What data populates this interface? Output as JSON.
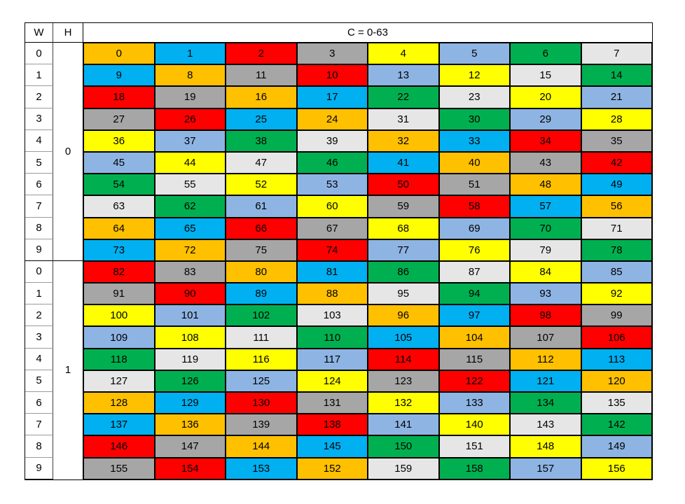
{
  "page": {
    "background": "#FFFFFF"
  },
  "table": {
    "header": {
      "w": "W",
      "h": "H",
      "c": "C = 0-63"
    },
    "palette": {
      "orange": "#FFC000",
      "cyan": "#00B0F0",
      "red": "#FF0000",
      "gray": "#A6A6A6",
      "yellow": "#FFFF00",
      "blue": "#8EB4E3",
      "green": "#00B050",
      "lightgray": "#E7E6E6"
    },
    "sections": [
      {
        "h_label": "0",
        "rows": [
          {
            "w_label": "0",
            "cells": [
              {
                "v": "0",
                "c": "orange"
              },
              {
                "v": "1",
                "c": "cyan"
              },
              {
                "v": "2",
                "c": "red"
              },
              {
                "v": "3",
                "c": "gray"
              },
              {
                "v": "4",
                "c": "yellow"
              },
              {
                "v": "5",
                "c": "blue"
              },
              {
                "v": "6",
                "c": "green"
              },
              {
                "v": "7",
                "c": "lightgray"
              }
            ]
          },
          {
            "w_label": "1",
            "cells": [
              {
                "v": "9",
                "c": "cyan"
              },
              {
                "v": "8",
                "c": "orange"
              },
              {
                "v": "11",
                "c": "gray"
              },
              {
                "v": "10",
                "c": "red"
              },
              {
                "v": "13",
                "c": "blue"
              },
              {
                "v": "12",
                "c": "yellow"
              },
              {
                "v": "15",
                "c": "lightgray"
              },
              {
                "v": "14",
                "c": "green"
              }
            ]
          },
          {
            "w_label": "2",
            "cells": [
              {
                "v": "18",
                "c": "red"
              },
              {
                "v": "19",
                "c": "gray"
              },
              {
                "v": "16",
                "c": "orange"
              },
              {
                "v": "17",
                "c": "cyan"
              },
              {
                "v": "22",
                "c": "green"
              },
              {
                "v": "23",
                "c": "lightgray"
              },
              {
                "v": "20",
                "c": "yellow"
              },
              {
                "v": "21",
                "c": "blue"
              }
            ]
          },
          {
            "w_label": "3",
            "cells": [
              {
                "v": "27",
                "c": "gray"
              },
              {
                "v": "26",
                "c": "red"
              },
              {
                "v": "25",
                "c": "cyan"
              },
              {
                "v": "24",
                "c": "orange"
              },
              {
                "v": "31",
                "c": "lightgray"
              },
              {
                "v": "30",
                "c": "green"
              },
              {
                "v": "29",
                "c": "blue"
              },
              {
                "v": "28",
                "c": "yellow"
              }
            ]
          },
          {
            "w_label": "4",
            "cells": [
              {
                "v": "36",
                "c": "yellow"
              },
              {
                "v": "37",
                "c": "blue"
              },
              {
                "v": "38",
                "c": "green"
              },
              {
                "v": "39",
                "c": "lightgray"
              },
              {
                "v": "32",
                "c": "orange"
              },
              {
                "v": "33",
                "c": "cyan"
              },
              {
                "v": "34",
                "c": "red"
              },
              {
                "v": "35",
                "c": "gray"
              }
            ]
          },
          {
            "w_label": "5",
            "cells": [
              {
                "v": "45",
                "c": "blue"
              },
              {
                "v": "44",
                "c": "yellow"
              },
              {
                "v": "47",
                "c": "lightgray"
              },
              {
                "v": "46",
                "c": "green"
              },
              {
                "v": "41",
                "c": "cyan"
              },
              {
                "v": "40",
                "c": "orange"
              },
              {
                "v": "43",
                "c": "gray"
              },
              {
                "v": "42",
                "c": "red"
              }
            ]
          },
          {
            "w_label": "6",
            "cells": [
              {
                "v": "54",
                "c": "green"
              },
              {
                "v": "55",
                "c": "lightgray"
              },
              {
                "v": "52",
                "c": "yellow"
              },
              {
                "v": "53",
                "c": "blue"
              },
              {
                "v": "50",
                "c": "red"
              },
              {
                "v": "51",
                "c": "gray"
              },
              {
                "v": "48",
                "c": "orange"
              },
              {
                "v": "49",
                "c": "cyan"
              }
            ]
          },
          {
            "w_label": "7",
            "cells": [
              {
                "v": "63",
                "c": "lightgray"
              },
              {
                "v": "62",
                "c": "green"
              },
              {
                "v": "61",
                "c": "blue"
              },
              {
                "v": "60",
                "c": "yellow"
              },
              {
                "v": "59",
                "c": "gray"
              },
              {
                "v": "58",
                "c": "red"
              },
              {
                "v": "57",
                "c": "cyan"
              },
              {
                "v": "56",
                "c": "orange"
              }
            ]
          },
          {
            "w_label": "8",
            "cells": [
              {
                "v": "64",
                "c": "orange"
              },
              {
                "v": "65",
                "c": "cyan"
              },
              {
                "v": "66",
                "c": "red"
              },
              {
                "v": "67",
                "c": "gray"
              },
              {
                "v": "68",
                "c": "yellow"
              },
              {
                "v": "69",
                "c": "blue"
              },
              {
                "v": "70",
                "c": "green"
              },
              {
                "v": "71",
                "c": "lightgray"
              }
            ]
          },
          {
            "w_label": "9",
            "cells": [
              {
                "v": "73",
                "c": "cyan"
              },
              {
                "v": "72",
                "c": "orange"
              },
              {
                "v": "75",
                "c": "gray"
              },
              {
                "v": "74",
                "c": "red"
              },
              {
                "v": "77",
                "c": "blue"
              },
              {
                "v": "76",
                "c": "yellow"
              },
              {
                "v": "79",
                "c": "lightgray"
              },
              {
                "v": "78",
                "c": "green"
              }
            ]
          }
        ]
      },
      {
        "h_label": "1",
        "rows": [
          {
            "w_label": "0",
            "cells": [
              {
                "v": "82",
                "c": "red"
              },
              {
                "v": "83",
                "c": "gray"
              },
              {
                "v": "80",
                "c": "orange"
              },
              {
                "v": "81",
                "c": "cyan"
              },
              {
                "v": "86",
                "c": "green"
              },
              {
                "v": "87",
                "c": "lightgray"
              },
              {
                "v": "84",
                "c": "yellow"
              },
              {
                "v": "85",
                "c": "blue"
              }
            ]
          },
          {
            "w_label": "1",
            "cells": [
              {
                "v": "91",
                "c": "gray"
              },
              {
                "v": "90",
                "c": "red"
              },
              {
                "v": "89",
                "c": "cyan"
              },
              {
                "v": "88",
                "c": "orange"
              },
              {
                "v": "95",
                "c": "lightgray"
              },
              {
                "v": "94",
                "c": "green"
              },
              {
                "v": "93",
                "c": "blue"
              },
              {
                "v": "92",
                "c": "yellow"
              }
            ]
          },
          {
            "w_label": "2",
            "cells": [
              {
                "v": "100",
                "c": "yellow"
              },
              {
                "v": "101",
                "c": "blue"
              },
              {
                "v": "102",
                "c": "green"
              },
              {
                "v": "103",
                "c": "lightgray"
              },
              {
                "v": "96",
                "c": "orange"
              },
              {
                "v": "97",
                "c": "cyan"
              },
              {
                "v": "98",
                "c": "red"
              },
              {
                "v": "99",
                "c": "gray"
              }
            ]
          },
          {
            "w_label": "3",
            "cells": [
              {
                "v": "109",
                "c": "blue"
              },
              {
                "v": "108",
                "c": "yellow"
              },
              {
                "v": "111",
                "c": "lightgray"
              },
              {
                "v": "110",
                "c": "green"
              },
              {
                "v": "105",
                "c": "cyan"
              },
              {
                "v": "104",
                "c": "orange"
              },
              {
                "v": "107",
                "c": "gray"
              },
              {
                "v": "106",
                "c": "red"
              }
            ]
          },
          {
            "w_label": "4",
            "cells": [
              {
                "v": "118",
                "c": "green"
              },
              {
                "v": "119",
                "c": "lightgray"
              },
              {
                "v": "116",
                "c": "yellow"
              },
              {
                "v": "117",
                "c": "blue"
              },
              {
                "v": "114",
                "c": "red"
              },
              {
                "v": "115",
                "c": "gray"
              },
              {
                "v": "112",
                "c": "orange"
              },
              {
                "v": "113",
                "c": "cyan"
              }
            ]
          },
          {
            "w_label": "5",
            "cells": [
              {
                "v": "127",
                "c": "lightgray"
              },
              {
                "v": "126",
                "c": "green"
              },
              {
                "v": "125",
                "c": "blue"
              },
              {
                "v": "124",
                "c": "yellow"
              },
              {
                "v": "123",
                "c": "gray"
              },
              {
                "v": "122",
                "c": "red"
              },
              {
                "v": "121",
                "c": "cyan"
              },
              {
                "v": "120",
                "c": "orange"
              }
            ]
          },
          {
            "w_label": "6",
            "cells": [
              {
                "v": "128",
                "c": "orange"
              },
              {
                "v": "129",
                "c": "cyan"
              },
              {
                "v": "130",
                "c": "red"
              },
              {
                "v": "131",
                "c": "gray"
              },
              {
                "v": "132",
                "c": "yellow"
              },
              {
                "v": "133",
                "c": "blue"
              },
              {
                "v": "134",
                "c": "green"
              },
              {
                "v": "135",
                "c": "lightgray"
              }
            ]
          },
          {
            "w_label": "7",
            "cells": [
              {
                "v": "137",
                "c": "cyan"
              },
              {
                "v": "136",
                "c": "orange"
              },
              {
                "v": "139",
                "c": "gray"
              },
              {
                "v": "138",
                "c": "red"
              },
              {
                "v": "141",
                "c": "blue"
              },
              {
                "v": "140",
                "c": "yellow"
              },
              {
                "v": "143",
                "c": "lightgray"
              },
              {
                "v": "142",
                "c": "green"
              }
            ]
          },
          {
            "w_label": "8",
            "cells": [
              {
                "v": "146",
                "c": "red"
              },
              {
                "v": "147",
                "c": "gray"
              },
              {
                "v": "144",
                "c": "orange"
              },
              {
                "v": "145",
                "c": "cyan"
              },
              {
                "v": "150",
                "c": "green"
              },
              {
                "v": "151",
                "c": "lightgray"
              },
              {
                "v": "148",
                "c": "yellow"
              },
              {
                "v": "149",
                "c": "blue"
              }
            ]
          },
          {
            "w_label": "9",
            "cells": [
              {
                "v": "155",
                "c": "gray"
              },
              {
                "v": "154",
                "c": "red"
              },
              {
                "v": "153",
                "c": "cyan"
              },
              {
                "v": "152",
                "c": "orange"
              },
              {
                "v": "159",
                "c": "lightgray"
              },
              {
                "v": "158",
                "c": "green"
              },
              {
                "v": "157",
                "c": "blue"
              },
              {
                "v": "156",
                "c": "yellow"
              }
            ]
          }
        ]
      }
    ]
  }
}
